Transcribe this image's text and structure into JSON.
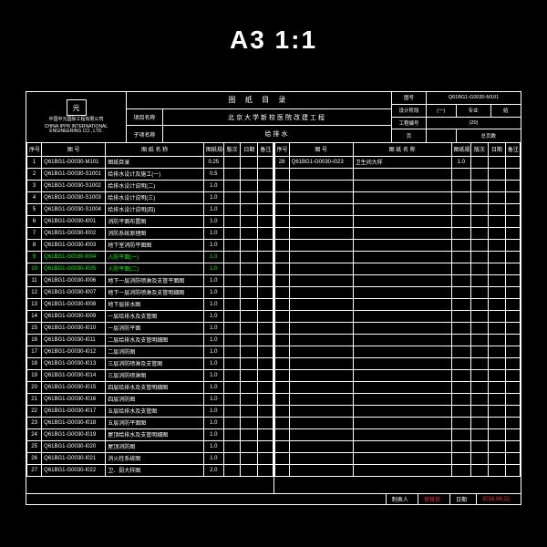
{
  "page_label": "A3     1:1",
  "colors": {
    "bg": "#000000",
    "fg": "#ffffff",
    "highlight": "#00ff00",
    "accent": "#ff3030"
  },
  "banner": {
    "company_line1": "中国中元国际工程有限公司",
    "company_line2": "CHINA IPPR INTERNATIONAL ENGINEERING CO., LTD.",
    "logo_glyph": "元",
    "title": "图   纸   目   录",
    "project_label": "项目名称",
    "project_value": "北京大学新校医院改建工程",
    "sub_label": "子项名称",
    "sub_value": "给排水",
    "right": {
      "r1c1": "图号",
      "r1c2": "Q61BG1-G0030-M101",
      "r2c1": "设计阶段",
      "r2c2": "(一)",
      "r2c3": "专业",
      "r2c4": "给",
      "r3c1": "工程编号",
      "r3c2": "(20)",
      "r4c1": "页",
      "r4c2": "",
      "r4c3_label": "总页数",
      "r4c3_val": ""
    }
  },
  "columns": {
    "seq": "序号",
    "code": "图    号",
    "name": "图 纸 名 称",
    "size": "图纸规格",
    "ver": "版次",
    "date": "日期",
    "note": "备注"
  },
  "col_widths_pct": [
    6,
    26,
    40,
    8,
    7,
    7,
    6
  ],
  "left_rows": [
    {
      "n": 1,
      "code": "Q61BG1-G0030-M101",
      "name": "图纸目录",
      "size": "0.25"
    },
    {
      "n": 2,
      "code": "Q61BG1-G0030-S1001",
      "name": "给排水设计及施工(一)",
      "size": "0.5"
    },
    {
      "n": 3,
      "code": "Q61BG1-G0030-S1002",
      "name": "给排水设计说明(二)",
      "size": "1.0"
    },
    {
      "n": 4,
      "code": "Q61BG1-G0030-S1003",
      "name": "给排水设计说明(三)",
      "size": "1.0"
    },
    {
      "n": 5,
      "code": "Q61BG1-G0030-S1004",
      "name": "给排水设计说明(四)",
      "size": "1.0"
    },
    {
      "n": 6,
      "code": "Q61BG1-G0030-I001",
      "name": "消防平面布置图",
      "size": "1.0"
    },
    {
      "n": 7,
      "code": "Q61BG1-G0030-I002",
      "name": "消防系统原理图",
      "size": "1.0"
    },
    {
      "n": 8,
      "code": "Q61BG1-G0030-I003",
      "name": "地下室消防平面图",
      "size": "1.0"
    },
    {
      "n": 9,
      "code": "Q61BG1-G0030-I004",
      "name": "人防平面(一)",
      "size": "1.0",
      "hl": true
    },
    {
      "n": 10,
      "code": "Q61BG1-G0030-I005",
      "name": "人防平面(二)",
      "size": "1.0",
      "hl": true
    },
    {
      "n": 11,
      "code": "Q61BG1-G0030-I006",
      "name": "地下一层消防喷淋及支管平面图",
      "size": "1.0"
    },
    {
      "n": 12,
      "code": "Q61BG1-G0030-I007",
      "name": "地下一层消防喷淋及支管明细图",
      "size": "1.0"
    },
    {
      "n": 13,
      "code": "Q61BG1-G0030-I008",
      "name": "地下层排水图",
      "size": "1.0"
    },
    {
      "n": 14,
      "code": "Q61BG1-G0030-I009",
      "name": "一层给排水及支管图",
      "size": "1.0"
    },
    {
      "n": 15,
      "code": "Q61BG1-G0030-I010",
      "name": "一层消防平面",
      "size": "1.0"
    },
    {
      "n": 16,
      "code": "Q61BG1-G0030-I011",
      "name": "二层给排水及支管明细图",
      "size": "1.0"
    },
    {
      "n": 17,
      "code": "Q61BG1-G0030-I012",
      "name": "二层消防图",
      "size": "1.0"
    },
    {
      "n": 18,
      "code": "Q61BG1-G0030-I013",
      "name": "三层消防喷淋及支管图",
      "size": "1.0"
    },
    {
      "n": 19,
      "code": "Q61BG1-G0030-I014",
      "name": "三层消防喷淋图",
      "size": "1.0"
    },
    {
      "n": 20,
      "code": "Q61BG1-G0030-I015",
      "name": "四层给排水及支管明细图",
      "size": "1.0"
    },
    {
      "n": 21,
      "code": "Q61BG1-G0030-I016",
      "name": "四层消防图",
      "size": "1.0"
    },
    {
      "n": 22,
      "code": "Q61BG1-G0030-I017",
      "name": "五层给排水及支管图",
      "size": "1.0"
    },
    {
      "n": 23,
      "code": "Q61BG1-G0030-I018",
      "name": "五层消防平面图",
      "size": "1.0"
    },
    {
      "n": 24,
      "code": "Q61BG1-G0030-I019",
      "name": "屋顶给排水及支管明细图",
      "size": "1.0"
    },
    {
      "n": 25,
      "code": "Q61BG1-G0030-I020",
      "name": "屋顶消防图",
      "size": "1.0"
    },
    {
      "n": 26,
      "code": "Q61BG1-G0030-I021",
      "name": "消火栓系统图",
      "size": "1.0"
    },
    {
      "n": 27,
      "code": "Q61BG1-G0030-I022",
      "name": "卫、厨大样图",
      "size": "2.0"
    }
  ],
  "right_rows": [
    {
      "n": 28,
      "code": "Q61BG1-G0030-I023",
      "name": "卫生间大样",
      "size": "1.0"
    }
  ],
  "right_blank_rows": 26,
  "footer": {
    "l1": "制表人",
    "v1": "审核员",
    "l2": "日期",
    "v2": "2016.04.22"
  }
}
